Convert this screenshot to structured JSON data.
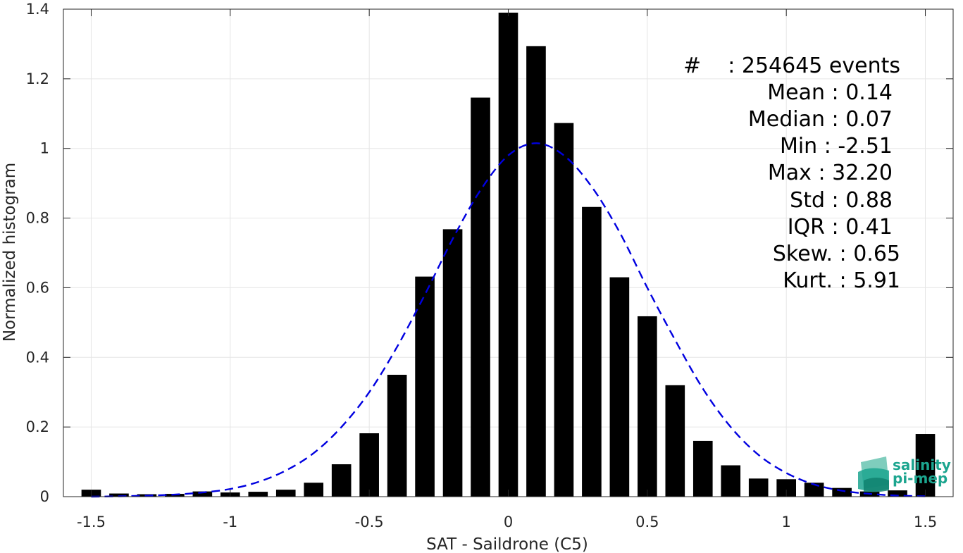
{
  "chart_data": {
    "type": "bar",
    "xlabel": "SAT - Saildrone (C5)",
    "ylabel": "Normalized histogram",
    "xlim": [
      -1.6,
      1.6
    ],
    "ylim": [
      0,
      1.4
    ],
    "grid": true,
    "x_ticks": [
      -1.5,
      -1,
      -0.5,
      0,
      0.5,
      1,
      1.5
    ],
    "x_tick_labels": [
      "-1.5",
      "-1",
      "-0.5",
      "0",
      "0.5",
      "1",
      "1.5"
    ],
    "y_ticks": [
      0,
      0.2,
      0.4,
      0.6,
      0.8,
      1,
      1.2,
      1.4
    ],
    "y_tick_labels": [
      "0",
      "0.2",
      "0.4",
      "0.6",
      "0.8",
      "1",
      "1.2",
      "1.4"
    ],
    "bar_width": 0.07,
    "bar_color": "#000000",
    "series": [
      {
        "type": "bar",
        "x": [
          -1.5,
          -1.4,
          -1.3,
          -1.2,
          -1.1,
          -1.0,
          -0.9,
          -0.8,
          -0.7,
          -0.6,
          -0.5,
          -0.4,
          -0.3,
          -0.2,
          -0.1,
          0.0,
          0.1,
          0.2,
          0.3,
          0.4,
          0.5,
          0.6,
          0.7,
          0.8,
          0.9,
          1.0,
          1.1,
          1.2,
          1.3,
          1.4,
          1.5
        ],
        "values": [
          0.02,
          0.009,
          0.007,
          0.008,
          0.015,
          0.012,
          0.014,
          0.02,
          0.04,
          0.093,
          0.182,
          0.35,
          0.632,
          0.768,
          1.146,
          1.39,
          1.294,
          1.073,
          0.832,
          0.63,
          0.518,
          0.32,
          0.16,
          0.09,
          0.052,
          0.05,
          0.04,
          0.025,
          0.015,
          0.018,
          0.18
        ]
      },
      {
        "type": "line",
        "style": "dashed",
        "color": "#0000e0",
        "x": [
          -1.5,
          -1.4,
          -1.3,
          -1.2,
          -1.1,
          -1.0,
          -0.9,
          -0.8,
          -0.7,
          -0.6,
          -0.5,
          -0.4,
          -0.3,
          -0.2,
          -0.1,
          0.0,
          0.1,
          0.2,
          0.3,
          0.4,
          0.5,
          0.6,
          0.7,
          0.8,
          0.9,
          1.0,
          1.1,
          1.2,
          1.3,
          1.4,
          1.5
        ],
        "values": [
          0.0,
          0.001,
          0.003,
          0.006,
          0.012,
          0.022,
          0.042,
          0.075,
          0.125,
          0.2,
          0.3,
          0.43,
          0.58,
          0.74,
          0.88,
          0.98,
          1.015,
          0.98,
          0.89,
          0.76,
          0.6,
          0.45,
          0.31,
          0.2,
          0.12,
          0.068,
          0.035,
          0.017,
          0.008,
          0.003,
          0.001
        ]
      }
    ],
    "stats": {
      "count": {
        "label": "#",
        "value": ": 254645 events"
      },
      "lines": [
        "Mean : 0.14",
        "Median : 0.07",
        "Min : -2.51",
        "Max : 32.20",
        "Std : 0.88",
        "IQR : 0.41",
        "Skew. : 0.65",
        "Kurt. : 5.91"
      ]
    },
    "logo": {
      "line1": "salinity",
      "line2": "pi-mep",
      "color": "#1ca58f"
    }
  }
}
